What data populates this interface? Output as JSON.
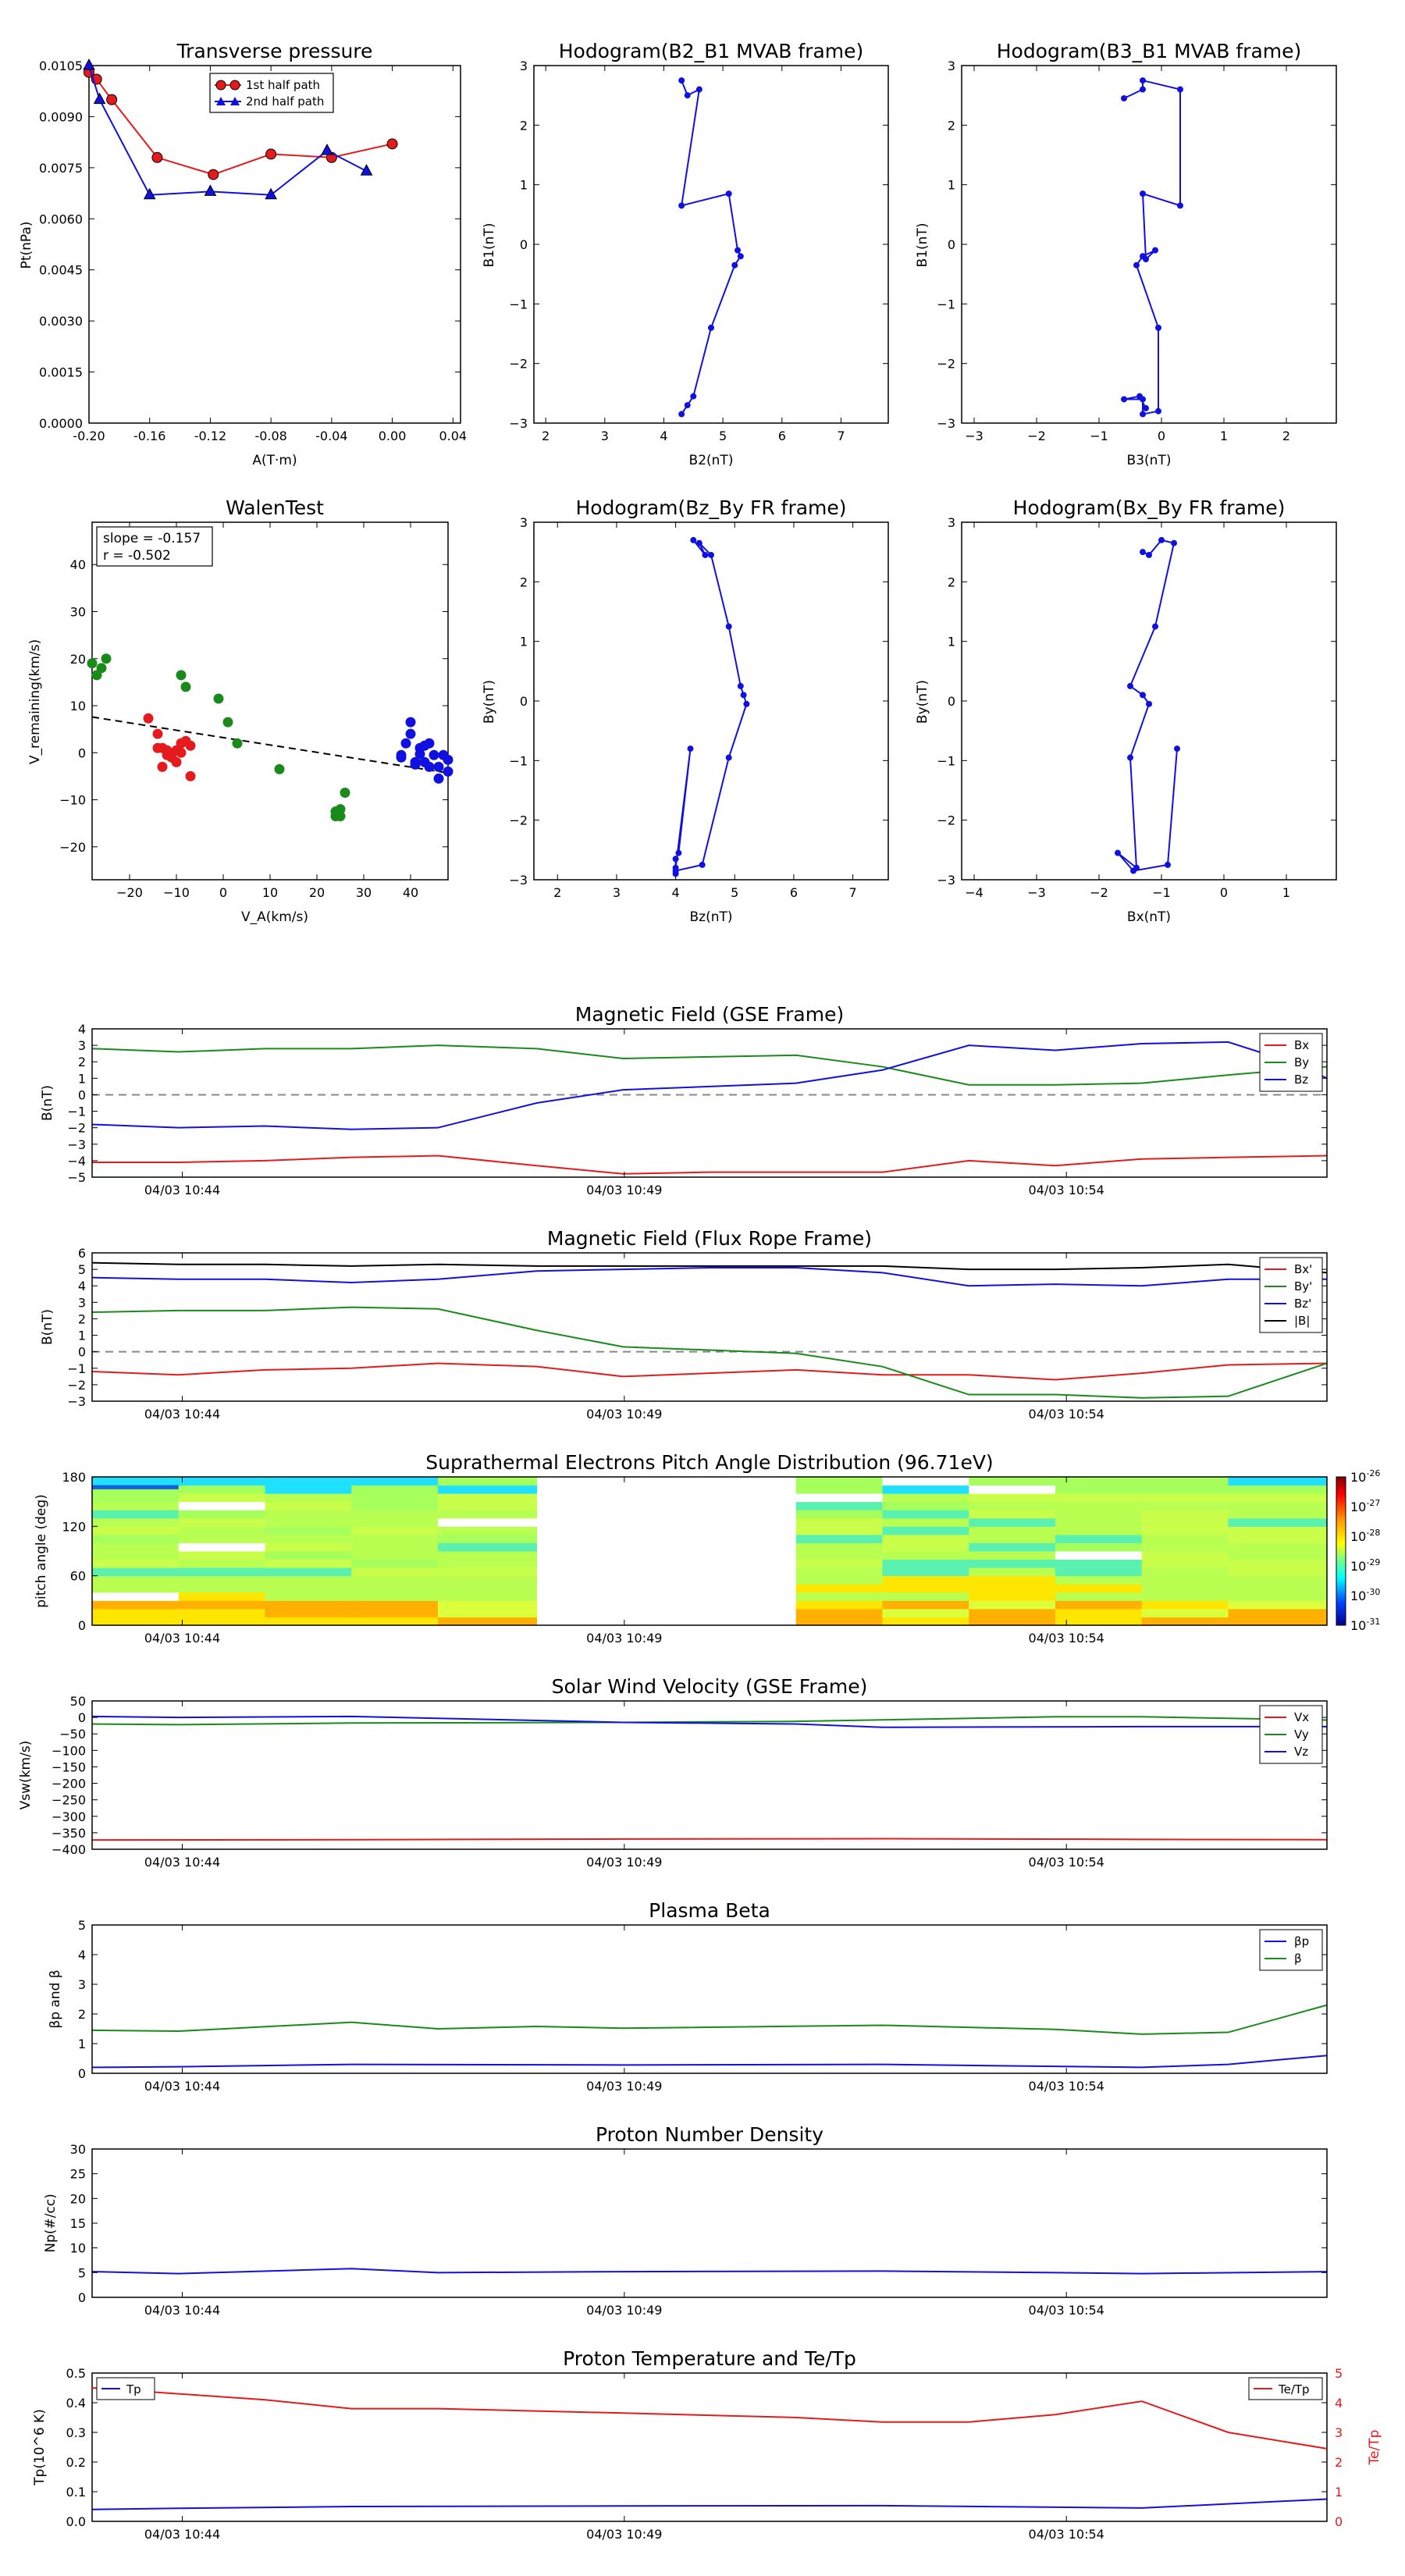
{
  "colors": {
    "red": "#e41a1c",
    "green": "#1a8a1a",
    "blue": "#1010e0",
    "black": "#000000",
    "grey": "#777777"
  },
  "chart_data": {
    "pressure": {
      "type": "line",
      "title": "Transverse pressure",
      "xlabel": "A(T·m)",
      "ylabel": "Pt(nPa)",
      "xlim": [
        -0.2,
        0.045
      ],
      "ylim": [
        0,
        0.0105
      ],
      "xticks": [
        "-0.20",
        "-0.16",
        "-0.12",
        "-0.08",
        "-0.04",
        "0.00",
        "0.04"
      ],
      "yticks": [
        "0.0000",
        "0.0015",
        "0.0030",
        "0.0045",
        "0.0060",
        "0.0075",
        "0.0090",
        "0.0105"
      ],
      "legend": [
        "1st half path",
        "2nd half path"
      ],
      "series": [
        {
          "name": "1st half path",
          "x": [
            -0.2,
            -0.195,
            -0.185,
            -0.155,
            -0.118,
            -0.08,
            -0.04,
            0.0
          ],
          "y": [
            0.0103,
            0.0101,
            0.0095,
            0.0078,
            0.0073,
            0.0079,
            0.0078,
            0.0082
          ]
        },
        {
          "name": "2nd half path",
          "x": [
            -0.2,
            -0.193,
            -0.16,
            -0.12,
            -0.08,
            -0.043,
            -0.017
          ],
          "y": [
            0.0105,
            0.0095,
            0.0067,
            0.0068,
            0.0067,
            0.008,
            0.0074
          ]
        }
      ]
    },
    "hodo1": {
      "type": "line",
      "title": "Hodogram(B2_B1 MVAB frame)",
      "xlabel": "B2(nT)",
      "ylabel": "B1(nT)",
      "xlim": [
        1.8,
        7.8
      ],
      "ylim": [
        -3,
        3
      ],
      "xticks": [
        "2",
        "3",
        "4",
        "5",
        "6",
        "7"
      ],
      "yticks": [
        "−3",
        "−2",
        "−1",
        "0",
        "1",
        "2",
        "3"
      ],
      "x": [
        4.3,
        4.4,
        4.6,
        4.3,
        5.1,
        5.25,
        5.3,
        5.2,
        4.8,
        4.5,
        4.4,
        4.3
      ],
      "y": [
        2.75,
        2.5,
        2.6,
        0.65,
        0.85,
        -0.1,
        -0.2,
        -0.35,
        -1.4,
        -2.55,
        -2.7,
        -2.85
      ]
    },
    "hodo2": {
      "type": "line",
      "title": "Hodogram(B3_B1 MVAB frame)",
      "xlabel": "B3(nT)",
      "ylabel": "B1(nT)",
      "xlim": [
        -3.2,
        2.8
      ],
      "ylim": [
        -3,
        3
      ],
      "xticks": [
        "−3",
        "−2",
        "−1",
        "0",
        "1",
        "2"
      ],
      "yticks": [
        "−3",
        "−2",
        "−1",
        "0",
        "1",
        "2",
        "3"
      ],
      "x": [
        -0.6,
        -0.3,
        -0.3,
        0.3,
        0.3,
        -0.3,
        -0.25,
        -0.1,
        -0.3,
        -0.4,
        -0.05,
        -0.05,
        -0.3,
        -0.3,
        -0.6,
        -0.35,
        -0.25
      ],
      "y": [
        2.45,
        2.6,
        2.75,
        2.6,
        0.65,
        0.85,
        -0.25,
        -0.1,
        -0.2,
        -0.35,
        -1.4,
        -2.8,
        -2.85,
        -2.6,
        -2.6,
        -2.55,
        -2.75
      ]
    },
    "walen": {
      "type": "scatter",
      "title": "WalenTest",
      "xlabel": "V_A(km/s)",
      "ylabel": "V_remaining(km/s)",
      "xlim": [
        -28,
        48
      ],
      "ylim": [
        -27,
        49
      ],
      "xticks": [
        "−20",
        "−10",
        "0",
        "10",
        "20",
        "30",
        "40"
      ],
      "yticks": [
        "−20",
        "−10",
        "0",
        "10",
        "20",
        "30",
        "40"
      ],
      "annotation": [
        "slope = -0.157",
        "r = -0.502"
      ],
      "fit": {
        "x": [
          -28,
          48
        ],
        "y": [
          7.6,
          -4.3
        ]
      },
      "red": {
        "x": [
          -16,
          -14,
          -14,
          -13,
          -12,
          -11,
          -10,
          -10,
          -9,
          -8,
          -7,
          -7,
          -13,
          -11,
          -12,
          -9
        ],
        "y": [
          7.3,
          4,
          1,
          1,
          0.5,
          -1,
          -2,
          0.5,
          2,
          2.5,
          -5,
          1.5,
          -3,
          -1,
          -0.5,
          0
        ]
      },
      "green": {
        "x": [
          -28,
          -27,
          -26,
          -25,
          -9,
          -8,
          -1,
          1,
          3,
          12,
          24,
          25,
          25,
          26,
          24
        ],
        "y": [
          19,
          16.5,
          18,
          20,
          16.5,
          14,
          11.5,
          6.5,
          2,
          -3.5,
          -12.5,
          -13.5,
          -12,
          -8.5,
          -13.5
        ]
      },
      "blue": {
        "x": [
          38,
          39,
          40,
          40,
          41,
          42,
          43,
          44,
          45,
          46,
          47,
          48,
          48,
          43,
          41,
          38,
          42,
          44,
          46
        ],
        "y": [
          -0.5,
          2,
          4,
          6.5,
          -2,
          1,
          1.5,
          2,
          -0.5,
          -5.5,
          -0.5,
          -1.5,
          -4,
          -2,
          -2.5,
          -1,
          -0.3,
          -3,
          -3
        ]
      }
    },
    "hodo3": {
      "type": "line",
      "title": "Hodogram(Bz_By FR frame)",
      "xlabel": "Bz(nT)",
      "ylabel": "By(nT)",
      "xlim": [
        1.6,
        7.6
      ],
      "ylim": [
        -3,
        3
      ],
      "xticks": [
        "2",
        "3",
        "4",
        "5",
        "6",
        "7"
      ],
      "yticks": [
        "−3",
        "−2",
        "−1",
        "0",
        "1",
        "2",
        "3"
      ],
      "x": [
        4.3,
        4.5,
        4.4,
        4.6,
        4.9,
        5.1,
        5.15,
        5.2,
        4.9,
        4.45,
        4.0,
        4.0,
        4.05,
        4.25,
        4.0,
        4.0
      ],
      "y": [
        2.7,
        2.45,
        2.65,
        2.45,
        1.25,
        0.25,
        0.1,
        -0.05,
        -0.95,
        -2.75,
        -2.85,
        -2.65,
        -2.55,
        -0.8,
        -2.8,
        -2.9
      ]
    },
    "hodo4": {
      "type": "line",
      "title": "Hodogram(Bx_By FR frame)",
      "xlabel": "Bx(nT)",
      "ylabel": "By(nT)",
      "xlim": [
        -4.2,
        1.8
      ],
      "ylim": [
        -3,
        3
      ],
      "xticks": [
        "−4",
        "−3",
        "−2",
        "−1",
        "0",
        "1"
      ],
      "yticks": [
        "−3",
        "−2",
        "−1",
        "0",
        "1",
        "2",
        "3"
      ],
      "x": [
        -1.3,
        -1.2,
        -1.0,
        -0.8,
        -1.1,
        -1.5,
        -1.3,
        -1.2,
        -1.5,
        -1.4,
        -1.7,
        -1.45,
        -0.9,
        -0.75
      ],
      "y": [
        2.5,
        2.45,
        2.7,
        2.65,
        1.25,
        0.25,
        0.1,
        -0.05,
        -0.95,
        -2.8,
        -2.55,
        -2.85,
        -2.75,
        -0.8
      ]
    },
    "time_axis": {
      "labels": [
        "04/03 10:44",
        "04/03 10:49",
        "04/03 10:54"
      ],
      "frac": [
        0.073,
        0.431,
        0.789
      ],
      "range_min": [
        "10:43",
        "10:57"
      ]
    },
    "mag_gse": {
      "type": "line",
      "title": "Magnetic Field (GSE Frame)",
      "ylabel": "B(nT)",
      "ylim": [
        -5,
        4
      ],
      "yticks": [
        "−5",
        "−4",
        "−3",
        "−2",
        "−1",
        "0",
        "1",
        "2",
        "3",
        "4"
      ],
      "legend": [
        "Bx",
        "By",
        "Bz"
      ],
      "series": [
        {
          "name": "Bx",
          "t": [
            0,
            0.07,
            0.14,
            0.21,
            0.28,
            0.36,
            0.43,
            0.5,
            0.57,
            0.64,
            0.71,
            0.78,
            0.85,
            0.92,
            1.0
          ],
          "y": [
            -4.1,
            -4.1,
            -4.0,
            -3.8,
            -3.7,
            -4.3,
            -4.8,
            -4.7,
            -4.7,
            -4.7,
            -4.0,
            -4.3,
            -3.9,
            -3.8,
            -3.7
          ]
        },
        {
          "name": "By",
          "t": [
            0,
            0.07,
            0.14,
            0.21,
            0.28,
            0.36,
            0.43,
            0.5,
            0.57,
            0.64,
            0.71,
            0.78,
            0.85,
            0.92,
            1.0
          ],
          "y": [
            2.8,
            2.6,
            2.8,
            2.8,
            3.0,
            2.8,
            2.2,
            2.3,
            2.4,
            1.7,
            0.6,
            0.6,
            0.7,
            1.2,
            1.7
          ]
        },
        {
          "name": "Bz",
          "t": [
            0,
            0.07,
            0.14,
            0.21,
            0.28,
            0.36,
            0.43,
            0.5,
            0.57,
            0.64,
            0.71,
            0.78,
            0.85,
            0.92,
            0.97,
            1.0
          ],
          "y": [
            -1.8,
            -2.0,
            -1.9,
            -2.1,
            -2.0,
            -0.5,
            0.3,
            0.5,
            0.7,
            1.5,
            3.0,
            2.7,
            3.1,
            3.2,
            2.0,
            1.0
          ]
        }
      ]
    },
    "mag_fr": {
      "type": "line",
      "title": "Magnetic Field (Flux Rope Frame)",
      "ylabel": "B(nT)",
      "ylim": [
        -3,
        6
      ],
      "yticks": [
        "−3",
        "−2",
        "−1",
        "0",
        "1",
        "2",
        "3",
        "4",
        "5",
        "6"
      ],
      "legend": [
        "Bx'",
        "By'",
        "Bz'",
        "|B|"
      ],
      "series": [
        {
          "name": "Bx'",
          "t": [
            0,
            0.07,
            0.14,
            0.21,
            0.28,
            0.36,
            0.43,
            0.5,
            0.57,
            0.64,
            0.71,
            0.78,
            0.85,
            0.92,
            1.0
          ],
          "y": [
            -1.2,
            -1.4,
            -1.1,
            -1.0,
            -0.7,
            -0.9,
            -1.5,
            -1.3,
            -1.1,
            -1.4,
            -1.4,
            -1.7,
            -1.3,
            -0.8,
            -0.7
          ]
        },
        {
          "name": "By'",
          "t": [
            0,
            0.07,
            0.14,
            0.21,
            0.28,
            0.36,
            0.43,
            0.5,
            0.57,
            0.64,
            0.71,
            0.78,
            0.85,
            0.92,
            1.0
          ],
          "y": [
            2.4,
            2.5,
            2.5,
            2.7,
            2.6,
            1.3,
            0.3,
            0.1,
            -0.1,
            -0.9,
            -2.6,
            -2.6,
            -2.8,
            -2.7,
            -0.7
          ]
        },
        {
          "name": "Bz'",
          "t": [
            0,
            0.07,
            0.14,
            0.21,
            0.28,
            0.36,
            0.43,
            0.5,
            0.57,
            0.64,
            0.71,
            0.78,
            0.85,
            0.92,
            1.0
          ],
          "y": [
            4.5,
            4.4,
            4.4,
            4.2,
            4.4,
            4.9,
            5.0,
            5.1,
            5.1,
            4.8,
            4.0,
            4.1,
            4.0,
            4.4,
            4.4
          ]
        },
        {
          "name": "|B|",
          "t": [
            0,
            0.07,
            0.14,
            0.21,
            0.28,
            0.36,
            0.43,
            0.5,
            0.57,
            0.64,
            0.71,
            0.78,
            0.85,
            0.92,
            1.0
          ],
          "y": [
            5.4,
            5.3,
            5.3,
            5.2,
            5.3,
            5.2,
            5.2,
            5.2,
            5.2,
            5.2,
            5.0,
            5.0,
            5.1,
            5.3,
            4.8
          ]
        }
      ]
    },
    "pad": {
      "type": "heatmap",
      "title": "Suprathermal Electrons Pitch Angle Distribution (96.71eV)",
      "ylabel": "pitch angle (deg)",
      "yticks": [
        "0",
        "60",
        "120",
        "180"
      ],
      "colorbar": [
        "10",
        "10",
        "10",
        "10",
        "10",
        "10"
      ],
      "colorbar_exp": [
        "-26",
        "-27",
        "-28",
        "-29",
        "-30",
        "-31"
      ]
    },
    "vsw": {
      "type": "line",
      "title": "Solar Wind Velocity (GSE Frame)",
      "ylabel": "Vsw(km/s)",
      "ylim": [
        -400,
        50
      ],
      "yticks": [
        "−400",
        "−350",
        "−300",
        "−250",
        "−200",
        "−150",
        "−100",
        "−50",
        "0",
        "50"
      ],
      "legend": [
        "Vx",
        "Vy",
        "Vz"
      ],
      "series": [
        {
          "name": "Vx",
          "t": [
            0,
            0.21,
            0.43,
            0.64,
            0.85,
            1.0
          ],
          "y": [
            -372,
            -371,
            -369,
            -368,
            -370,
            -371
          ]
        },
        {
          "name": "Vy",
          "t": [
            0,
            0.07,
            0.21,
            0.43,
            0.57,
            0.78,
            0.85,
            1.0
          ],
          "y": [
            -20,
            -22,
            -17,
            -15,
            -12,
            2,
            2,
            -8
          ]
        },
        {
          "name": "Vz",
          "t": [
            0,
            0.07,
            0.21,
            0.43,
            0.57,
            0.64,
            0.85,
            1.0
          ],
          "y": [
            3,
            0,
            3,
            -15,
            -20,
            -30,
            -28,
            -28
          ]
        }
      ]
    },
    "beta": {
      "type": "line",
      "title": "Plasma Beta",
      "ylabel": "βp and β",
      "ylim": [
        0,
        5
      ],
      "yticks": [
        "0",
        "1",
        "2",
        "3",
        "4",
        "5"
      ],
      "legend": [
        "βp",
        "β"
      ],
      "series": [
        {
          "name": "βp",
          "t": [
            0,
            0.07,
            0.21,
            0.43,
            0.64,
            0.85,
            0.92,
            1.0
          ],
          "y": [
            0.2,
            0.22,
            0.3,
            0.28,
            0.3,
            0.2,
            0.3,
            0.6
          ]
        },
        {
          "name": "β",
          "t": [
            0,
            0.07,
            0.21,
            0.28,
            0.36,
            0.43,
            0.64,
            0.78,
            0.85,
            0.92,
            1.0
          ],
          "y": [
            1.45,
            1.42,
            1.72,
            1.5,
            1.58,
            1.52,
            1.62,
            1.48,
            1.32,
            1.38,
            2.3
          ]
        }
      ]
    },
    "density": {
      "type": "line",
      "title": "Proton Number Density",
      "ylabel": "Np(#/cc)",
      "ylim": [
        0,
        30
      ],
      "yticks": [
        "0",
        "5",
        "10",
        "15",
        "20",
        "25",
        "30"
      ],
      "series": [
        {
          "name": "Np",
          "t": [
            0,
            0.07,
            0.21,
            0.28,
            0.43,
            0.64,
            0.78,
            0.85,
            1.0
          ],
          "y": [
            5.2,
            4.8,
            5.8,
            5.0,
            5.2,
            5.3,
            5.0,
            4.8,
            5.2
          ]
        }
      ]
    },
    "temp": {
      "type": "line",
      "title": "Proton Temperature and Te/Tp",
      "ylabel": "Tp(10^6 K)",
      "ylabel_right": "Te/Tp",
      "ylim": [
        0,
        0.5
      ],
      "ylim_right": [
        0,
        5
      ],
      "yticks": [
        "0.0",
        "0.1",
        "0.2",
        "0.3",
        "0.4",
        "0.5"
      ],
      "yticks_right": [
        "0",
        "1",
        "2",
        "3",
        "4",
        "5"
      ],
      "legend": [
        "Tp",
        "Te/Tp"
      ],
      "series": [
        {
          "name": "Tp",
          "t": [
            0,
            0.07,
            0.21,
            0.43,
            0.64,
            0.85,
            1.0
          ],
          "y": [
            0.04,
            0.044,
            0.05,
            0.052,
            0.053,
            0.045,
            0.075
          ]
        },
        {
          "name": "Te/Tp",
          "t": [
            0,
            0.07,
            0.14,
            0.21,
            0.28,
            0.43,
            0.57,
            0.64,
            0.71,
            0.78,
            0.85,
            0.92,
            1.0
          ],
          "y": [
            4.5,
            4.3,
            4.1,
            3.8,
            3.8,
            3.65,
            3.5,
            3.35,
            3.35,
            3.6,
            4.05,
            3.0,
            2.45
          ]
        }
      ]
    }
  }
}
